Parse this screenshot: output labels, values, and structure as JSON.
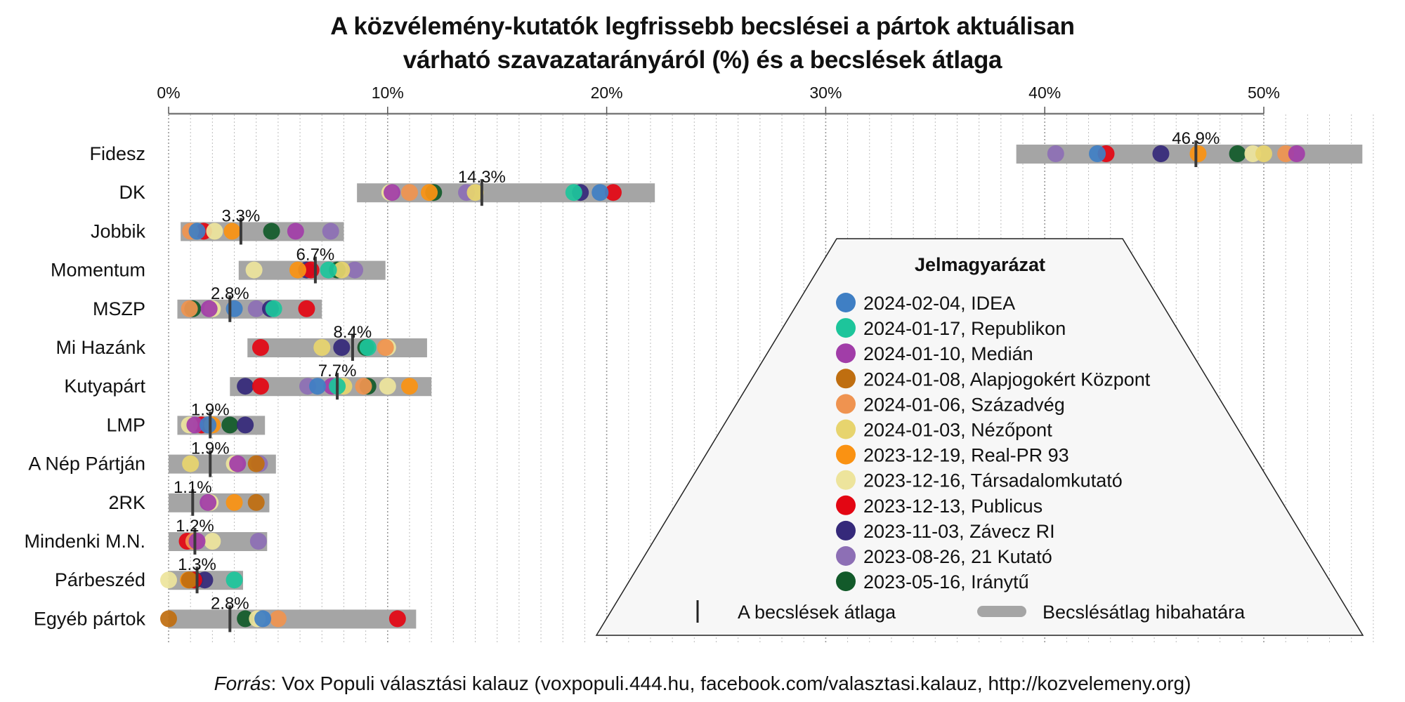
{
  "chart_data": {
    "type": "scatter",
    "title_line1": "A közvélemény-kutatók legfrissebb becslései a pártok aktuálisan",
    "title_line2": "várható szavazatarányáról (%) és a becslések átlaga",
    "xlabel": "",
    "ylabel": "",
    "xlim": [
      0,
      55
    ],
    "x_ticks": [
      0,
      10,
      20,
      30,
      40,
      50
    ],
    "x_tick_labels": [
      "0%",
      "10%",
      "20%",
      "30%",
      "40%",
      "50%"
    ],
    "grid": "vertical dotted every 1%",
    "legend": {
      "title": "Jelmagyarázat",
      "placement": "bottom-right",
      "pollsters": [
        {
          "key": "IDEA",
          "label": "2024-02-04, IDEA",
          "color": "#3f7fc4"
        },
        {
          "key": "Republikon",
          "label": "2024-01-17, Republikon",
          "color": "#1dc59b"
        },
        {
          "key": "Median",
          "label": "2024-01-10, Medián",
          "color": "#a13da8"
        },
        {
          "key": "Alapjogokert",
          "label": "2024-01-08, Alapjogokért Központ",
          "color": "#bf6e10"
        },
        {
          "key": "Szazadveg",
          "label": "2024-01-06, Századvég",
          "color": "#ef9350"
        },
        {
          "key": "Nezopont",
          "label": "2024-01-03, Nézőpont",
          "color": "#e7d46e"
        },
        {
          "key": "RealPR",
          "label": "2023-12-19, Real-PR 93",
          "color": "#fa9212"
        },
        {
          "key": "Tarsadalomkutato",
          "label": "2023-12-16, Társadalomkutató",
          "color": "#ede49c"
        },
        {
          "key": "Publicus",
          "label": "2023-12-13, Publicus",
          "color": "#e30613"
        },
        {
          "key": "Zavecz",
          "label": "2023-11-03, Závecz RI",
          "color": "#35297a"
        },
        {
          "key": "Kutato21",
          "label": "2023-08-26, 21 Kutató",
          "color": "#8d6fb5"
        },
        {
          "key": "Iranytu",
          "label": "2023-05-16, Iránytű",
          "color": "#125a2a"
        }
      ],
      "mean_label": "A becslések átlaga",
      "error_label": "Becslésátlag hibahatára"
    },
    "parties": [
      {
        "name": "Fidesz",
        "mean": 46.9,
        "mean_label": "46.9%",
        "error_range": [
          38.7,
          54.5
        ],
        "estimates": {
          "Kutato21": 40.5,
          "IDEA": 42.4,
          "Publicus": 42.8,
          "Zavecz": 45.3,
          "RealPR": 47.0,
          "Iranytu": 48.8,
          "Tarsadalomkutato": 49.5,
          "Nezopont": 50.0,
          "Szazadveg": 51.0,
          "Median": 51.5
        }
      },
      {
        "name": "DK",
        "mean": 14.3,
        "mean_label": "14.3%",
        "error_range": [
          8.6,
          22.2
        ],
        "estimates": {
          "Median": 10.2,
          "Tarsadalomkutato": 10.1,
          "Szazadveg": 11.0,
          "RealPR": 11.9,
          "Iranytu": 12.1,
          "Kutato21": 13.6,
          "Nezopont": 14.0,
          "Republikon": 18.5,
          "Zavecz": 18.8,
          "IDEA": 19.7,
          "Publicus": 20.3
        }
      },
      {
        "name": "Jobbik",
        "mean": 3.3,
        "mean_label": "3.3%",
        "error_range": [
          0.55,
          8.0
        ],
        "estimates": {
          "Szazadveg": 1.0,
          "IDEA": 1.3,
          "Tarsadalomkutato": 2.1,
          "Publicus": 1.6,
          "RealPR": 2.9,
          "Iranytu": 4.7,
          "Median": 5.8,
          "Kutato21": 7.4
        }
      },
      {
        "name": "Momentum",
        "mean": 6.7,
        "mean_label": "6.7%",
        "error_range": [
          3.2,
          9.9
        ],
        "estimates": {
          "Tarsadalomkutato": 3.9,
          "RealPR": 5.9,
          "Publicus": 6.5,
          "Zavecz": 6.3,
          "Republikon": 7.3,
          "Nezopont": 7.9,
          "Iranytu": 7.7,
          "Kutato21": 8.5
        }
      },
      {
        "name": "MSZP",
        "mean": 2.8,
        "mean_label": "2.8%",
        "error_range": [
          0.4,
          7.0
        ],
        "estimates": {
          "Szazadveg": 0.95,
          "Iranytu": 1.1,
          "Median": 1.85,
          "Tarsadalomkutato": 2.0,
          "IDEA": 3.0,
          "Kutato21": 4.0,
          "Republikon": 4.8,
          "Zavecz": 4.65,
          "Publicus": 6.3
        }
      },
      {
        "name": "Mi Hazánk",
        "mean": 8.4,
        "mean_label": "8.4%",
        "error_range": [
          3.6,
          11.8
        ],
        "estimates": {
          "Publicus": 4.2,
          "Nezopont": 7.0,
          "Zavecz": 7.9,
          "Republikon": 9.1,
          "Iranytu": 9.0,
          "Szazadveg": 9.9,
          "Tarsadalomkutato": 10.0
        }
      },
      {
        "name": "Kutyapárt",
        "mean": 7.7,
        "mean_label": "7.7%",
        "error_range": [
          2.8,
          12.0
        ],
        "estimates": {
          "Zavecz": 3.5,
          "Publicus": 4.2,
          "Kutato21": 6.35,
          "IDEA": 6.8,
          "Median": 7.45,
          "Republikon": 7.7,
          "Nezopont": 8.0,
          "Szazadveg": 8.9,
          "Iranytu": 9.1,
          "Tarsadalomkutato": 10.0,
          "RealPR": 11.0
        }
      },
      {
        "name": "LMP",
        "mean": 1.9,
        "mean_label": "1.9%",
        "error_range": [
          0.4,
          4.4
        ],
        "estimates": {
          "Tarsadalomkutato": 0.95,
          "Kutato21": 1.1,
          "Median": 1.2,
          "Publicus": 1.5,
          "IDEA": 1.8,
          "RealPR": 2.0,
          "Iranytu": 2.8,
          "Zavecz": 3.5
        }
      },
      {
        "name": "A Nép Pártján",
        "mean": 1.9,
        "mean_label": "1.9%",
        "error_range": [
          0.0,
          4.9
        ],
        "estimates": {
          "Nezopont": 1.0,
          "Median": 3.15,
          "Tarsadalomkutato": 3.0,
          "Alapjogokert": 4.0,
          "Kutato21": 4.15
        }
      },
      {
        "name": "2RK",
        "mean": 1.1,
        "mean_label": "1.1%",
        "error_range": [
          0.0,
          4.6
        ],
        "estimates": {
          "Median": 1.8,
          "Tarsadalomkutato": 1.9,
          "RealPR": 3.0,
          "Alapjogokert": 4.0
        }
      },
      {
        "name": "Mindenki M.N.",
        "mean": 1.2,
        "mean_label": "1.2%",
        "error_range": [
          0.0,
          4.5
        ],
        "estimates": {
          "Publicus": 0.85,
          "Szazadveg": 1.15,
          "Median": 1.3,
          "Tarsadalomkutato": 2.0,
          "Kutato21": 4.1
        }
      },
      {
        "name": "Párbeszéd",
        "mean": 1.3,
        "mean_label": "1.3%",
        "error_range": [
          0.0,
          3.4
        ],
        "estimates": {
          "Tarsadalomkutato": 0.0,
          "RealPR": 0.9,
          "Alapjogokert": 0.95,
          "Publicus": 1.15,
          "Iranytu": 1.2,
          "Zavecz": 1.65,
          "Republikon": 3.0
        }
      },
      {
        "name": "Egyéb pártok",
        "mean": 2.8,
        "mean_label": "2.8%",
        "error_range": [
          0.0,
          11.3
        ],
        "estimates": {
          "Alapjogokert": 0.0,
          "Publicus": 10.45,
          "Iranytu": 3.5,
          "IDEA": 4.3,
          "Tarsadalomkutato": 4.05,
          "Szazadveg": 5.0
        }
      }
    ],
    "source_prefix": "Forrás",
    "source_text": ": Vox Populi választási kalauz (voxpopuli.444.hu, facebook.com/valasztasi.kalauz, http://kozvelemeny.org)"
  }
}
